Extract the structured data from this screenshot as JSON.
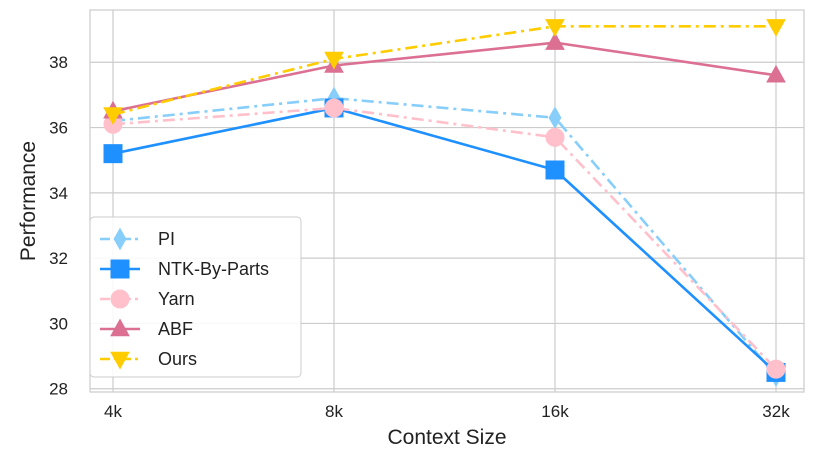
{
  "chart_data": {
    "type": "line",
    "x": [
      "4k",
      "8k",
      "16k",
      "32k"
    ],
    "xlabel": "Context Size",
    "ylabel": "Performance",
    "ylim": [
      27.9,
      39.6
    ],
    "yticks": [
      28,
      30,
      32,
      34,
      36,
      38
    ],
    "grid": true,
    "legend_position": "lower-left",
    "series": [
      {
        "name": "PI",
        "values": [
          36.2,
          36.9,
          36.3,
          28.4
        ],
        "color": "#87CEFA",
        "linestyle": "dashdot",
        "marker": "thin-diamond"
      },
      {
        "name": "NTK-By-Parts",
        "values": [
          35.2,
          36.6,
          34.7,
          28.5
        ],
        "color": "#1E90FF",
        "linestyle": "solid",
        "marker": "square"
      },
      {
        "name": "Yarn",
        "values": [
          36.1,
          36.6,
          35.7,
          28.6
        ],
        "color": "#FFC0CB",
        "linestyle": "dashdot",
        "marker": "circle"
      },
      {
        "name": "ABF",
        "values": [
          36.5,
          37.9,
          38.6,
          37.6
        ],
        "color": "#DB7093",
        "linestyle": "solid",
        "marker": "triangle-up"
      },
      {
        "name": "Ours",
        "values": [
          36.4,
          38.1,
          39.1,
          39.1
        ],
        "color": "#FFCC00",
        "linestyle": "dashdot",
        "marker": "triangle-down"
      }
    ]
  }
}
